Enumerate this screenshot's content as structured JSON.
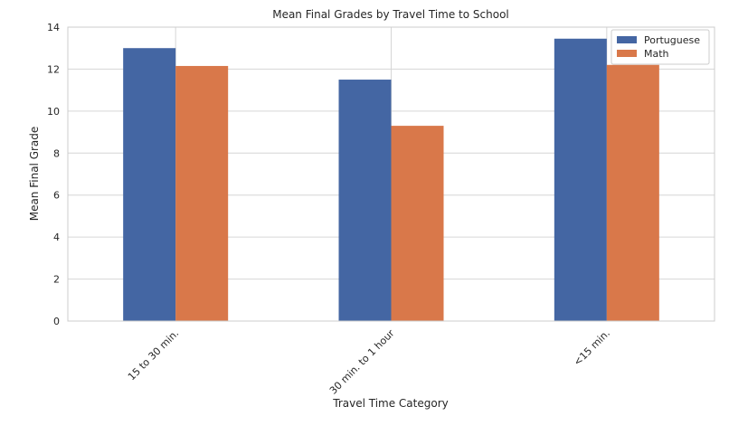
{
  "chart_data": {
    "type": "bar",
    "title": "Mean Final Grades by Travel Time to School",
    "xlabel": "Travel Time Category",
    "ylabel": "Mean Final Grade",
    "categories": [
      "15 to 30 min.",
      "30 min. to 1 hour",
      "<15 min."
    ],
    "series": [
      {
        "name": "Portuguese",
        "color": "#4466a3",
        "values": [
          13.0,
          11.5,
          13.45
        ]
      },
      {
        "name": "Math",
        "color": "#d9784a",
        "values": [
          12.15,
          9.3,
          12.2
        ]
      }
    ],
    "ylim": [
      0,
      14
    ],
    "yticks": [
      0,
      2,
      4,
      6,
      8,
      10,
      12,
      14
    ],
    "grid": true,
    "legend_position": "top-right"
  }
}
